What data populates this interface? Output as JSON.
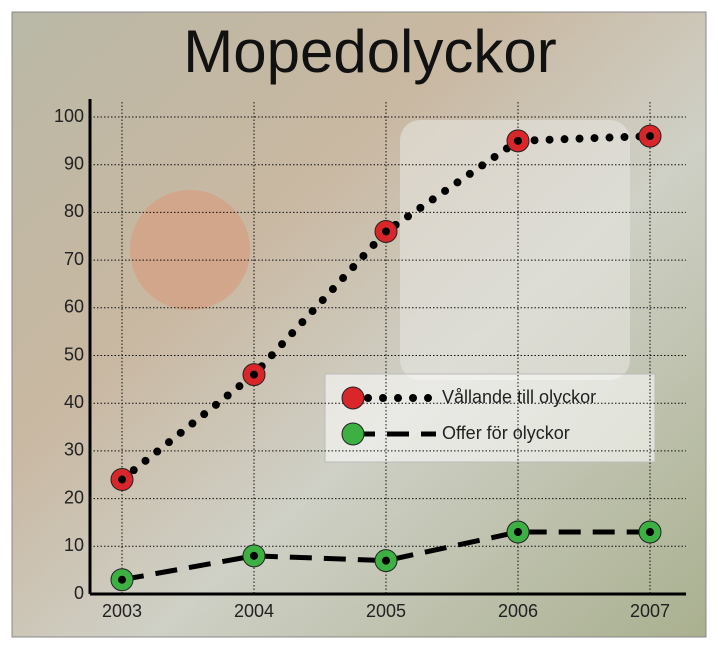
{
  "chart_data": {
    "type": "line",
    "title": "Mopedolyckor",
    "categories": [
      "2003",
      "2004",
      "2005",
      "2006",
      "2007"
    ],
    "series": [
      {
        "name": "Vållande till olyckor",
        "color": "#d9262b",
        "values": [
          24,
          46,
          76,
          95,
          96
        ]
      },
      {
        "name": "Offer för olyckor",
        "color": "#3cb043",
        "values": [
          3,
          8,
          7,
          13,
          13
        ]
      }
    ],
    "ylim": [
      0,
      100
    ],
    "yticks": [
      0,
      10,
      20,
      30,
      40,
      50,
      60,
      70,
      80,
      90,
      100
    ],
    "grid": true
  }
}
